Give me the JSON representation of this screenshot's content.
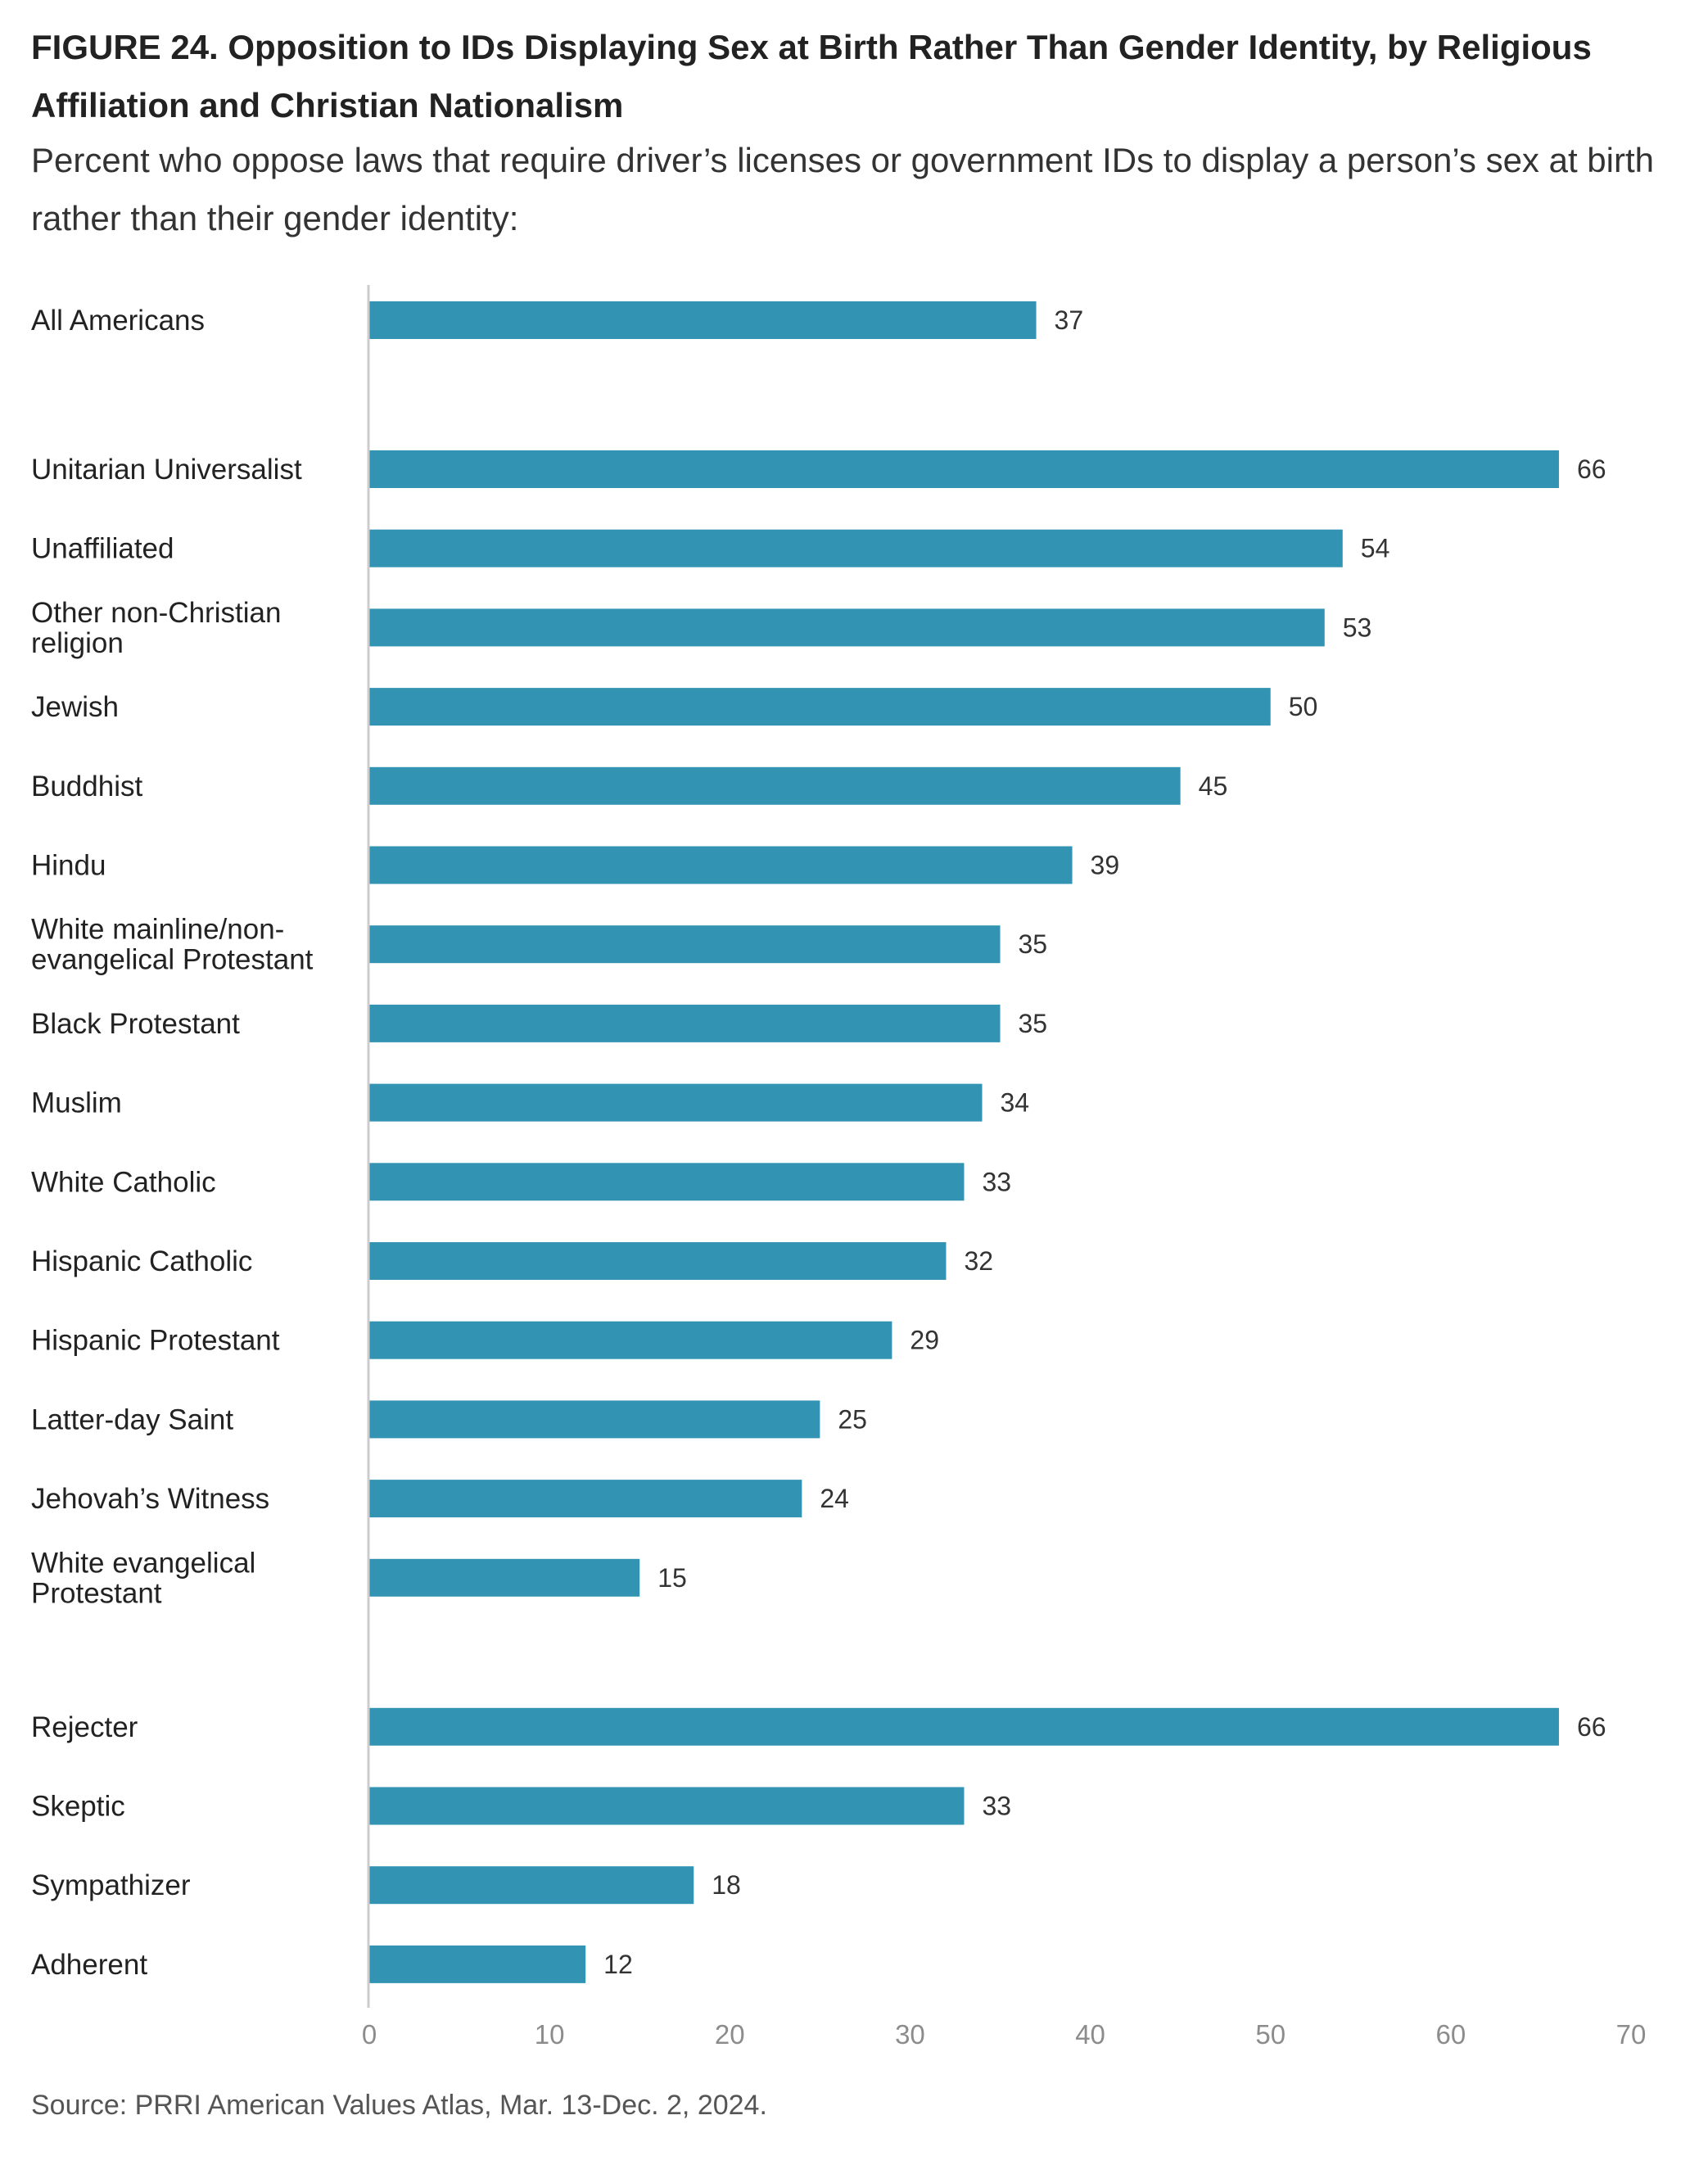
{
  "figure": {
    "title": "FIGURE 24. Opposition to IDs Displaying Sex at Birth Rather Than Gender Identity, by Religious Affiliation and Christian Nationalism",
    "subtitle": "Percent who oppose laws that require driver’s licenses or government IDs to display a person’s sex at birth rather than their gender identity:",
    "source": "Source: PRRI American Values Atlas, Mar. 13-Dec. 2, 2024."
  },
  "chart_data": {
    "type": "bar",
    "orientation": "horizontal",
    "title": "FIGURE 24. Opposition to IDs Displaying Sex at Birth Rather Than Gender Identity, by Religious Affiliation and Christian Nationalism",
    "subtitle": "Percent who oppose laws that require driver’s licenses or government IDs to display a person’s sex at birth rather than their gender identity:",
    "categories": [
      "All Americans",
      "Unitarian Universalist",
      "Unaffiliated",
      "Other non-Christian religion",
      "Jewish",
      "Buddhist",
      "Hindu",
      "White mainline/non-evangelical Protestant",
      "Black Protestant",
      "Muslim",
      "White Catholic",
      "Hispanic Catholic",
      "Hispanic Protestant",
      "Latter-day Saint",
      "Jehovah’s Witness",
      "White evangelical Protestant",
      "Rejecter",
      "Skeptic",
      "Sympathizer",
      "Adherent"
    ],
    "category_lines": [
      [
        "All Americans"
      ],
      [
        "Unitarian Universalist"
      ],
      [
        "Unaffiliated"
      ],
      [
        "Other non-Christian",
        "religion"
      ],
      [
        "Jewish"
      ],
      [
        "Buddhist"
      ],
      [
        "Hindu"
      ],
      [
        "White mainline/non-",
        "evangelical Protestant"
      ],
      [
        "Black Protestant"
      ],
      [
        "Muslim"
      ],
      [
        "White Catholic"
      ],
      [
        "Hispanic Catholic"
      ],
      [
        "Hispanic Protestant"
      ],
      [
        "Latter-day Saint"
      ],
      [
        "Jehovah’s Witness"
      ],
      [
        "White evangelical",
        "Protestant"
      ],
      [
        "Rejecter"
      ],
      [
        "Skeptic"
      ],
      [
        "Sympathizer"
      ],
      [
        "Adherent"
      ]
    ],
    "groups": [
      [
        0
      ],
      [
        1,
        2,
        3,
        4,
        5,
        6,
        7,
        8,
        9,
        10,
        11,
        12,
        13,
        14,
        15
      ],
      [
        16,
        17,
        18,
        19
      ]
    ],
    "values": [
      37,
      66,
      54,
      53,
      50,
      45,
      39,
      35,
      35,
      34,
      33,
      32,
      29,
      25,
      24,
      15,
      66,
      33,
      18,
      12
    ],
    "xlim": [
      0,
      70
    ],
    "xticks": [
      0,
      10,
      20,
      30,
      40,
      50,
      60,
      70
    ],
    "xlabel": "",
    "ylabel": "",
    "grid": false,
    "legend": "none",
    "bar_color": "#3293b2",
    "axis_line_color": "#cccccc"
  }
}
